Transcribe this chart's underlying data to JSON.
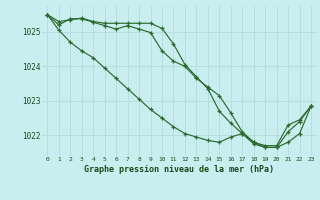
{
  "title": "Graphe pression niveau de la mer (hPa)",
  "background_color": "#c8eef0",
  "grid_color": "#b8dfe0",
  "line_color": "#2d6a2d",
  "x_labels": [
    "0",
    "1",
    "2",
    "3",
    "4",
    "5",
    "6",
    "7",
    "8",
    "9",
    "10",
    "11",
    "12",
    "13",
    "14",
    "15",
    "16",
    "17",
    "18",
    "19",
    "20",
    "21",
    "22",
    "23"
  ],
  "ylim": [
    1021.4,
    1025.75
  ],
  "yticks": [
    1022,
    1023,
    1024,
    1025
  ],
  "series": [
    [
      1025.5,
      1025.3,
      1025.35,
      1025.4,
      1025.3,
      1025.25,
      1025.25,
      1025.25,
      1025.25,
      1025.25,
      1025.1,
      1024.65,
      1024.05,
      1023.7,
      1023.35,
      1022.7,
      1022.35,
      1022.05,
      1021.75,
      1021.65,
      1021.65,
      1021.8,
      1022.05,
      1022.85
    ],
    [
      1025.5,
      1025.2,
      1025.38,
      1025.38,
      1025.28,
      1025.18,
      1025.08,
      1025.18,
      1025.08,
      1024.98,
      1024.45,
      1024.15,
      1024.0,
      1023.65,
      1023.4,
      1023.15,
      1022.65,
      1022.1,
      1021.8,
      1021.65,
      1021.65,
      1022.1,
      1022.4,
      1022.85
    ],
    [
      1025.5,
      1025.05,
      1024.7,
      1024.45,
      1024.25,
      1023.95,
      1023.65,
      1023.35,
      1023.05,
      1022.75,
      1022.5,
      1022.25,
      1022.05,
      1021.95,
      1021.85,
      1021.8,
      1021.95,
      1022.05,
      1021.8,
      1021.7,
      1021.7,
      1022.3,
      1022.45,
      1022.85
    ]
  ]
}
